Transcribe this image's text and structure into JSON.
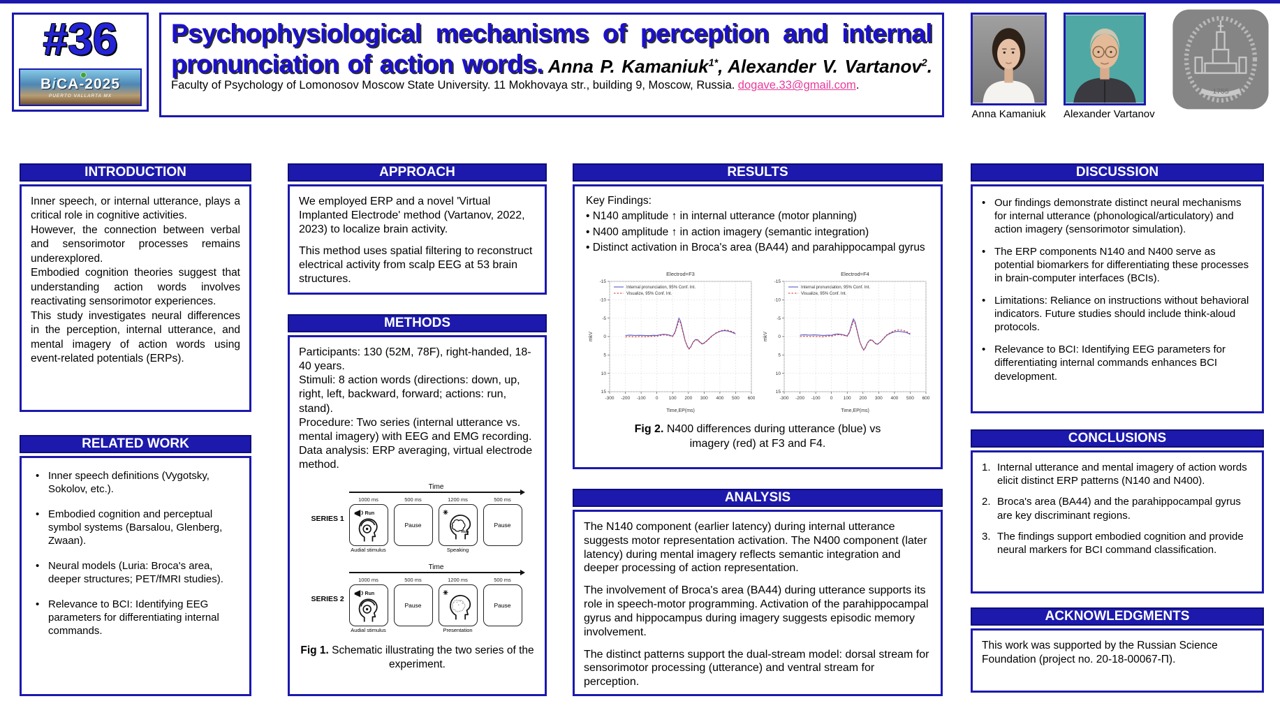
{
  "colors": {
    "accent_blue": "#1c19ac",
    "accent_dark": "#0f0d7a",
    "title_blue": "#1b10cc",
    "email_pink": "#e83a9c",
    "erp_blue": "#5a5ac8",
    "erp_red": "#cc3333"
  },
  "header": {
    "badge_number": "#36",
    "conference": {
      "name_b": "B",
      "name_i": "i",
      "name_rest": "CA-2025",
      "location": "PUERTO VALLARTA MX"
    },
    "title": "Psychophysiological mechanisms of perception and internal pronunciation of action words.",
    "authors": [
      {
        "name": "Anna P. Kamaniuk",
        "sup": "1*",
        "after": ","
      },
      {
        "name": "Alexander V. Vartanov",
        "sup": "2",
        "after": "."
      }
    ],
    "affiliation": "Faculty of Psychology of Lomonosov Moscow State University. 11 Mokhovaya str., building 9, Moscow, Russia.",
    "email": "dogave.33@gmail.com",
    "email_after": ".",
    "photo_captions": [
      "Anna Kamaniuk",
      "Alexander Vartanov"
    ],
    "university_logo_year": "1755"
  },
  "sections": {
    "introduction": {
      "title": "INTRODUCTION",
      "paragraphs": [
        "Inner speech, or internal utterance, plays a critical role in cognitive activities.",
        "However, the connection between verbal and sensorimotor processes remains underexplored.",
        "Embodied cognition theories suggest that understanding action words involves reactivating sensorimotor experiences.",
        "This study investigates neural differences in the perception, internal utterance, and mental imagery of action words using event-related potentials (ERPs)."
      ]
    },
    "related_work": {
      "title": "RELATED WORK",
      "bullets": [
        "Inner speech definitions (Vygotsky, Sokolov, etc.).",
        "Embodied cognition and perceptual symbol systems (Barsalou, Glenberg, Zwaan).",
        "Neural models (Luria: Broca's area, deeper structures; PET/fMRI studies).",
        "Relevance to BCI: Identifying EEG parameters for differentiating internal commands."
      ]
    },
    "approach": {
      "title": "APPROACH",
      "paragraphs": [
        "We employed ERP and a novel 'Virtual Implanted Electrode' method (Vartanov, 2022, 2023) to localize brain activity.",
        "This method uses spatial filtering to reconstruct electrical activity from scalp EEG at 53 brain structures."
      ]
    },
    "methods": {
      "title": "METHODS",
      "lines": [
        "Participants: 130 (52M, 78F), right-handed, 18-40 years.",
        "Stimuli: 8 action words (directions: down, up, right, left, backward, forward; actions: run, stand).",
        "Procedure: Two series (internal utterance vs. mental imagery) with EEG and EMG recording.",
        "Data analysis: ERP averaging, virtual electrode method."
      ]
    },
    "results": {
      "title": "RESULTS",
      "findings_label": "Key Findings:",
      "bullets": [
        "N140 amplitude ↑ in internal utterance (motor planning)",
        "N400 amplitude ↑ in action imagery (semantic integration)",
        "Distinct activation in Broca's area (BA44) and parahippocampal gyrus"
      ]
    },
    "analysis": {
      "title": "ANALYSIS",
      "paragraphs": [
        "The N140 component (earlier latency) during internal utterance suggests motor representation activation. The N400 component (later latency) during mental imagery reflects semantic integration and deeper processing of action representation.",
        "The involvement of Broca's area (BA44) during utterance supports its role in speech-motor programming. Activation of the parahippocampal gyrus and hippocampus during imagery suggests episodic memory involvement.",
        "The distinct patterns support the dual-stream model: dorsal stream for sensorimotor processing (utterance) and ventral stream for perception."
      ]
    },
    "discussion": {
      "title": "DISCUSSION",
      "bullets": [
        "Our findings demonstrate distinct neural mechanisms for internal utterance (phonological/articulatory) and action imagery (sensorimotor simulation).",
        "The ERP components N140 and N400 serve as potential biomarkers for differentiating these processes in brain-computer interfaces (BCIs).",
        "Limitations: Reliance on instructions without behavioral indicators. Future studies should include think-aloud protocols.",
        "Relevance to BCI: Identifying EEG parameters for differentiating internal commands enhances BCI development."
      ]
    },
    "conclusions": {
      "title": "CONCLUSIONS",
      "items": [
        "Internal utterance and mental imagery of action words elicit distinct ERP patterns (N140 and N400).",
        "Broca's area (BA44) and the parahippocampal gyrus are key discriminant regions.",
        "The findings support embodied cognition and provide neural markers for BCI command classification."
      ]
    },
    "acknowledgments": {
      "title": "ACKNOWLEDGMENTS",
      "text": "This work was supported by the Russian Science Foundation (project no. 20-18-00067-П)."
    }
  },
  "figure1": {
    "time_label": "Time",
    "series": [
      {
        "label": "SERIES 1",
        "steps": [
          {
            "duration": "1000 ms",
            "caption": "Audial stimulus",
            "word": "Run",
            "icon": "megaphone-headphones-head"
          },
          {
            "duration": "500 ms",
            "box_text": "Pause"
          },
          {
            "duration": "1200 ms",
            "caption": "Speaking",
            "word": "Run",
            "icon": "head-brain-speaking"
          },
          {
            "duration": "500 ms",
            "box_text": "Pause"
          }
        ]
      },
      {
        "label": "SERIES 2",
        "steps": [
          {
            "duration": "1000 ms",
            "caption": "Audial stimulus",
            "word": "Run",
            "icon": "megaphone-headphones-head"
          },
          {
            "duration": "500 ms",
            "box_text": "Pause"
          },
          {
            "duration": "1200 ms",
            "caption": "Presentation",
            "icon": "head-brain-imagery"
          },
          {
            "duration": "500 ms",
            "box_text": "Pause"
          }
        ]
      }
    ],
    "caption_label": "Fig 1.",
    "caption_text": " Schematic illustrating the two series of the experiment."
  },
  "figure2": {
    "caption_label": "Fig 2.",
    "caption_text": " N400 differences during utterance (blue) vs imagery (red) at F3 and F4."
  },
  "chart_data": [
    {
      "type": "line",
      "title": "Electrod=F3",
      "xlabel": "Time,EP(ms)",
      "ylabel": "mkV",
      "xlim": [
        -300,
        600
      ],
      "ylim": [
        -15,
        15
      ],
      "y_axis_inverted": true,
      "grid": true,
      "legend_position": "top-left",
      "xticks": [
        -300,
        -200,
        -100,
        0,
        100,
        200,
        300,
        400,
        500,
        600
      ],
      "yticks": [
        -15,
        -10,
        -5,
        0,
        5,
        10,
        15
      ],
      "series": [
        {
          "name": "Internal pronunciation, 95% Conf. Int.",
          "color": "#5a5ac8",
          "style": "solid",
          "x": [
            -200,
            -170,
            -140,
            -110,
            -80,
            -50,
            -20,
            0,
            20,
            40,
            60,
            80,
            100,
            115,
            130,
            140,
            150,
            165,
            180,
            195,
            205,
            215,
            230,
            245,
            260,
            275,
            290,
            310,
            330,
            350,
            375,
            400,
            425,
            450,
            475,
            500
          ],
          "y": [
            -0.3,
            -0.4,
            -0.3,
            -0.35,
            -0.3,
            -0.25,
            -0.35,
            -0.3,
            -0.5,
            -0.6,
            -0.55,
            -0.4,
            -0.1,
            -1.2,
            -3.5,
            -5.0,
            -4.2,
            -1.5,
            1.2,
            2.8,
            3.3,
            2.8,
            1.5,
            0.8,
            0.9,
            1.6,
            2.0,
            1.4,
            0.6,
            -0.2,
            -0.9,
            -1.4,
            -1.6,
            -1.5,
            -1.2,
            -0.7
          ]
        },
        {
          "name": "Visualize, 95% Conf. Int.",
          "color": "#cc3333",
          "style": "dashed",
          "x": [
            -200,
            -170,
            -140,
            -110,
            -80,
            -50,
            -20,
            0,
            20,
            40,
            60,
            80,
            100,
            115,
            130,
            140,
            150,
            165,
            180,
            195,
            205,
            215,
            230,
            245,
            260,
            275,
            290,
            310,
            330,
            350,
            375,
            400,
            425,
            450,
            475,
            500
          ],
          "y": [
            0.1,
            0.0,
            0.1,
            0.0,
            0.05,
            0.0,
            -0.1,
            -0.1,
            -0.3,
            -0.45,
            -0.4,
            -0.25,
            0.0,
            -1.0,
            -3.0,
            -4.3,
            -3.8,
            -1.2,
            1.3,
            2.9,
            3.4,
            2.9,
            1.6,
            0.9,
            1.0,
            1.7,
            2.1,
            1.5,
            0.7,
            -0.1,
            -1.0,
            -1.5,
            -1.8,
            -1.7,
            -1.4,
            -0.9
          ]
        }
      ]
    },
    {
      "type": "line",
      "title": "Electrod=F4",
      "xlabel": "Time,EP(ms)",
      "ylabel": "mkV",
      "xlim": [
        -300,
        600
      ],
      "ylim": [
        -15,
        15
      ],
      "y_axis_inverted": true,
      "grid": true,
      "legend_position": "top-left",
      "xticks": [
        -300,
        -200,
        -100,
        0,
        100,
        200,
        300,
        400,
        500,
        600
      ],
      "yticks": [
        -15,
        -10,
        -5,
        0,
        5,
        10,
        15
      ],
      "series": [
        {
          "name": "Internal pronunciation, 95% Conf. Int.",
          "color": "#5a5ac8",
          "style": "solid",
          "x": [
            -200,
            -170,
            -140,
            -110,
            -80,
            -50,
            -20,
            0,
            20,
            40,
            60,
            80,
            100,
            115,
            130,
            140,
            150,
            165,
            180,
            195,
            205,
            215,
            230,
            245,
            260,
            275,
            290,
            310,
            330,
            350,
            375,
            400,
            425,
            450,
            475,
            500
          ],
          "y": [
            -0.4,
            -0.5,
            -0.4,
            -0.45,
            -0.4,
            -0.3,
            -0.4,
            -0.35,
            -0.6,
            -0.7,
            -0.6,
            -0.45,
            -0.15,
            -1.3,
            -3.6,
            -4.8,
            -4.0,
            -1.3,
            1.4,
            3.0,
            3.6,
            3.0,
            1.6,
            0.9,
            1.0,
            1.7,
            2.1,
            1.5,
            0.6,
            -0.3,
            -0.9,
            -1.3,
            -1.4,
            -1.3,
            -1.1,
            -0.6
          ]
        },
        {
          "name": "Visualize, 95% Conf. Int.",
          "color": "#cc3333",
          "style": "dashed",
          "x": [
            -200,
            -170,
            -140,
            -110,
            -80,
            -50,
            -20,
            0,
            20,
            40,
            60,
            80,
            100,
            115,
            130,
            140,
            150,
            165,
            180,
            195,
            205,
            215,
            230,
            245,
            260,
            275,
            290,
            310,
            330,
            350,
            375,
            400,
            425,
            450,
            475,
            500
          ],
          "y": [
            0.0,
            -0.1,
            0.0,
            -0.05,
            0.0,
            0.05,
            -0.15,
            -0.1,
            -0.35,
            -0.5,
            -0.45,
            -0.3,
            -0.05,
            -1.1,
            -3.1,
            -4.2,
            -3.6,
            -1.0,
            1.5,
            3.1,
            3.7,
            3.1,
            1.7,
            1.0,
            1.1,
            1.8,
            2.2,
            1.6,
            0.5,
            -0.4,
            -1.1,
            -1.6,
            -1.8,
            -1.7,
            -1.4,
            -0.8
          ]
        }
      ]
    }
  ]
}
